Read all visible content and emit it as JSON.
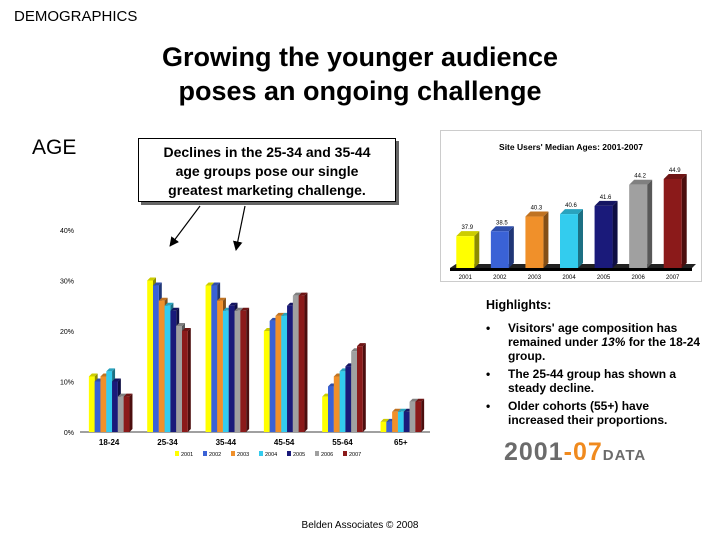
{
  "section_label": "DEMOGRAPHICS",
  "title_line1": "Growing the younger audience",
  "title_line2": "poses an ongoing challenge",
  "age_label": "AGE",
  "callout": {
    "line1": "Declines in the 25-34 and 35-44",
    "line2": "age groups pose our single",
    "line3": "greatest marketing challenge."
  },
  "chart_data": [
    {
      "type": "bar",
      "title": "",
      "categories": [
        "18-24",
        "25-34",
        "35-44",
        "45-54",
        "55-64",
        "65+"
      ],
      "series": [
        {
          "name": "2001",
          "color": "#ffff00",
          "values": [
            11,
            30,
            29,
            20,
            7,
            2
          ]
        },
        {
          "name": "2002",
          "color": "#3a62d6",
          "values": [
            10,
            29,
            29,
            22,
            9,
            2
          ]
        },
        {
          "name": "2003",
          "color": "#f0902a",
          "values": [
            11,
            26,
            26,
            23,
            11,
            4
          ]
        },
        {
          "name": "2004",
          "color": "#33ccee",
          "values": [
            12,
            25,
            24,
            23,
            12,
            4
          ]
        },
        {
          "name": "2005",
          "color": "#1a1a7a",
          "values": [
            10,
            24,
            25,
            25,
            13,
            4
          ]
        },
        {
          "name": "2006",
          "color": "#a0a0a0",
          "values": [
            7,
            21,
            24,
            27,
            16,
            6
          ]
        },
        {
          "name": "2007",
          "color": "#8b1a1a",
          "values": [
            7,
            20,
            24,
            27,
            17,
            6
          ]
        }
      ],
      "ylim": [
        0,
        40
      ],
      "yticks": [
        "0%",
        "10%",
        "20%",
        "30%",
        "40%"
      ],
      "legend_position": "bottom"
    },
    {
      "type": "bar",
      "title": "Site Users' Median Ages:   2001-2007",
      "categories": [
        "2001",
        "2002",
        "2003",
        "2004",
        "2005",
        "2006",
        "2007"
      ],
      "values": [
        37.9,
        38.5,
        40.3,
        40.6,
        41.6,
        44.2,
        44.9
      ],
      "value_labels": [
        "37.9",
        "38.5",
        "40.3",
        "40.6",
        "41.6",
        "44.2",
        "44.9"
      ],
      "colors": [
        "#ffff00",
        "#3a62d6",
        "#f0902a",
        "#33ccee",
        "#1a1a7a",
        "#a0a0a0",
        "#8b1a1a"
      ],
      "ylim": [
        34,
        46
      ]
    }
  ],
  "highlights": {
    "title": "Highlights:",
    "bullet_char": "•",
    "items": [
      {
        "pre": "Visitors' age composition has remained under ",
        "em": "13%",
        "post": " for the 18-24 group."
      },
      {
        "pre": "The 25-44 group has shown a steady decline.",
        "em": "",
        "post": ""
      },
      {
        "pre": "Older cohorts (55+) have increased their proportions.",
        "em": "",
        "post": ""
      }
    ]
  },
  "data_logo": {
    "part1": "2001",
    "dash": "-",
    "part2": "07",
    "suffix": "DATA"
  },
  "footer": "Belden Associates © 2008"
}
